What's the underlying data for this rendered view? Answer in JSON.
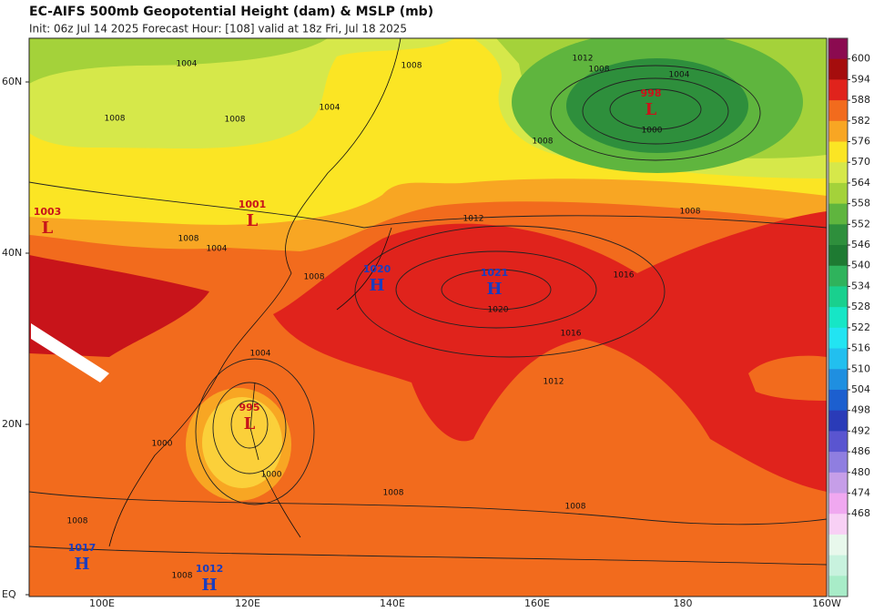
{
  "header": {
    "title": "EC-AIFS 500mb Geopotential Height (dam) & MSLP (mb)",
    "subtitle": "Init: 06z Jul 14 2025   Forecast Hour: [108]   valid at 18z Fri, Jul 18 2025"
  },
  "map": {
    "lat_labels": [
      "60N",
      "40N",
      "20N",
      "EQ"
    ],
    "lon_labels": [
      "100E",
      "120E",
      "140E",
      "160E",
      "180",
      "160W"
    ],
    "centers": [
      {
        "symbol": "L",
        "value": 998
      },
      {
        "symbol": "L",
        "value": 1001
      },
      {
        "symbol": "L",
        "value": 1003
      },
      {
        "symbol": "H",
        "value": 1020
      },
      {
        "symbol": "H",
        "value": 1021
      },
      {
        "symbol": "L",
        "value": 995
      },
      {
        "symbol": "H",
        "value": 1017
      },
      {
        "symbol": "H",
        "value": 1012
      }
    ],
    "isobar_labels": [
      1004,
      1008,
      1012,
      1008,
      1004,
      1000,
      1008,
      1008,
      1008,
      1008,
      1004,
      1012,
      1016,
      1020,
      1016,
      1012,
      1008,
      1008,
      1000,
      1000,
      1004,
      1008,
      1004,
      1008,
      1008,
      1008
    ]
  },
  "colorbar": {
    "ticks": [
      600,
      594,
      588,
      582,
      576,
      570,
      564,
      558,
      552,
      546,
      540,
      534,
      528,
      522,
      516,
      510,
      504,
      498,
      492,
      486,
      480,
      474,
      468
    ],
    "colors": [
      "#8b0a50",
      "#a50d0d",
      "#e0231c",
      "#f26b1d",
      "#f8a623",
      "#fbe524",
      "#d6e84a",
      "#a4d23a",
      "#5fb53e",
      "#2e8f3c",
      "#1e7a32",
      "#2fb35c",
      "#19d08e",
      "#16e6c6",
      "#22e4f2",
      "#22bfef",
      "#1f8fe0",
      "#1c5fcf",
      "#2a3bb8",
      "#5a55d0",
      "#8f7ee0",
      "#c69ee8",
      "#f0a8f0",
      "#f8d0f5",
      "#e8f8ec",
      "#c8f2de",
      "#a8ecc8"
    ]
  }
}
